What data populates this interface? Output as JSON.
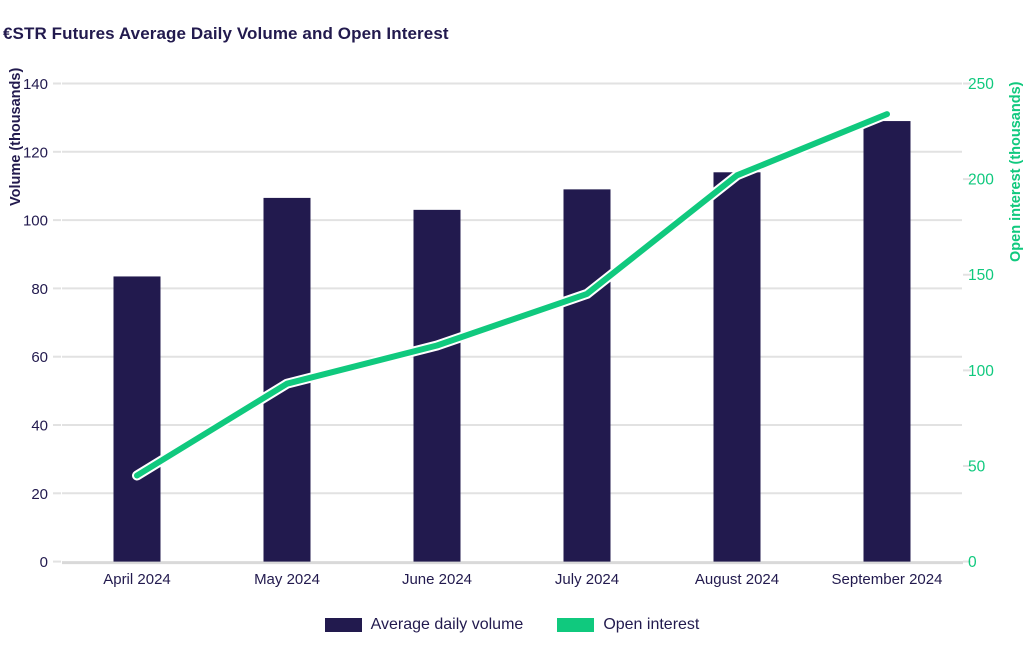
{
  "chart_data": {
    "type": "combo",
    "title": "€STR Futures Average Daily Volume and Open Interest",
    "categories": [
      "April 2024",
      "May 2024",
      "June 2024",
      "July 2024",
      "August 2024",
      "September 2024"
    ],
    "series": [
      {
        "name": "Average daily volume",
        "type": "bar",
        "axis": "left",
        "color": "#221a4e",
        "values": [
          83.5,
          106.5,
          103,
          109,
          114,
          129
        ]
      },
      {
        "name": "Open interest",
        "type": "line",
        "axis": "right",
        "color": "#10c97e",
        "values": [
          45,
          93,
          113,
          140,
          202,
          234
        ]
      }
    ],
    "left_axis": {
      "label": "Volume (thousands)",
      "min": 0,
      "max": 140,
      "ticks": [
        0,
        20,
        40,
        60,
        80,
        100,
        120,
        140
      ]
    },
    "right_axis": {
      "label": "Open interest (thousands)",
      "min": 0,
      "max": 250,
      "ticks": [
        0,
        50,
        100,
        150,
        200,
        250
      ]
    },
    "grid": true,
    "legend_position": "bottom",
    "colors": {
      "background": "#ffffff",
      "gridline": "#e2e2e2",
      "axis_line": "#d9d9d9",
      "text": "#221a4e",
      "right_axis_text": "#10c97e",
      "line_casing": "#ffffff"
    }
  }
}
